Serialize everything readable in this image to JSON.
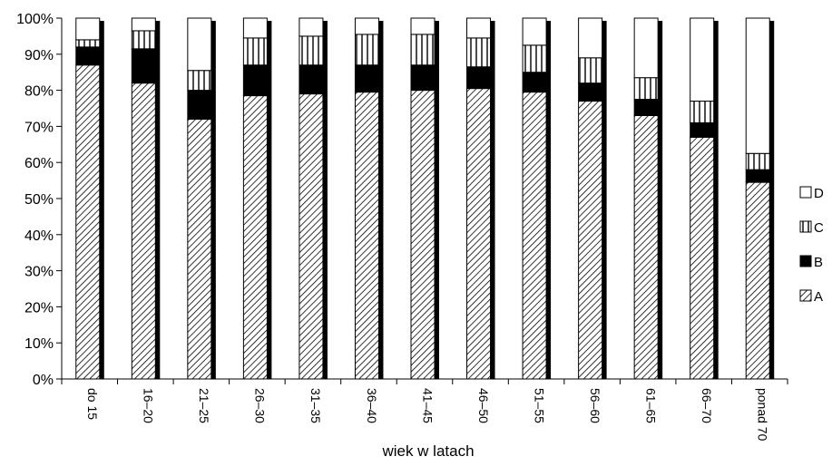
{
  "chart_data": {
    "type": "bar",
    "stacked": true,
    "normalized": true,
    "title": "",
    "xlabel": "wiek w latach",
    "ylabel": "",
    "ylim": [
      0,
      100
    ],
    "ytick_step": 10,
    "ytick_suffix": "%",
    "legend_position": "right",
    "categories": [
      "do 15",
      "16–20",
      "21–25",
      "26–30",
      "31–35",
      "36–40",
      "41–45",
      "46–50",
      "51–55",
      "56–60",
      "61–65",
      "66–70",
      "ponad 70"
    ],
    "series": [
      {
        "name": "A",
        "pattern": "diagonal-hatch",
        "values": [
          87,
          82,
          72,
          78.5,
          79,
          79.5,
          80,
          80.5,
          79.5,
          77,
          73,
          67,
          54.5
        ]
      },
      {
        "name": "B",
        "pattern": "solid-black",
        "values": [
          5,
          9.5,
          8,
          8.5,
          8,
          7.5,
          7,
          6,
          5.5,
          5,
          4.5,
          4,
          3.5
        ]
      },
      {
        "name": "C",
        "pattern": "vertical-lines",
        "values": [
          2,
          5,
          5.5,
          7.5,
          8,
          8.5,
          8.5,
          8,
          7.5,
          7,
          6,
          6,
          4.5
        ]
      },
      {
        "name": "D",
        "pattern": "white",
        "values": [
          6,
          3.5,
          14.5,
          5.5,
          5,
          4.5,
          4.5,
          5.5,
          7.5,
          11,
          16.5,
          23,
          37.5
        ]
      }
    ]
  }
}
